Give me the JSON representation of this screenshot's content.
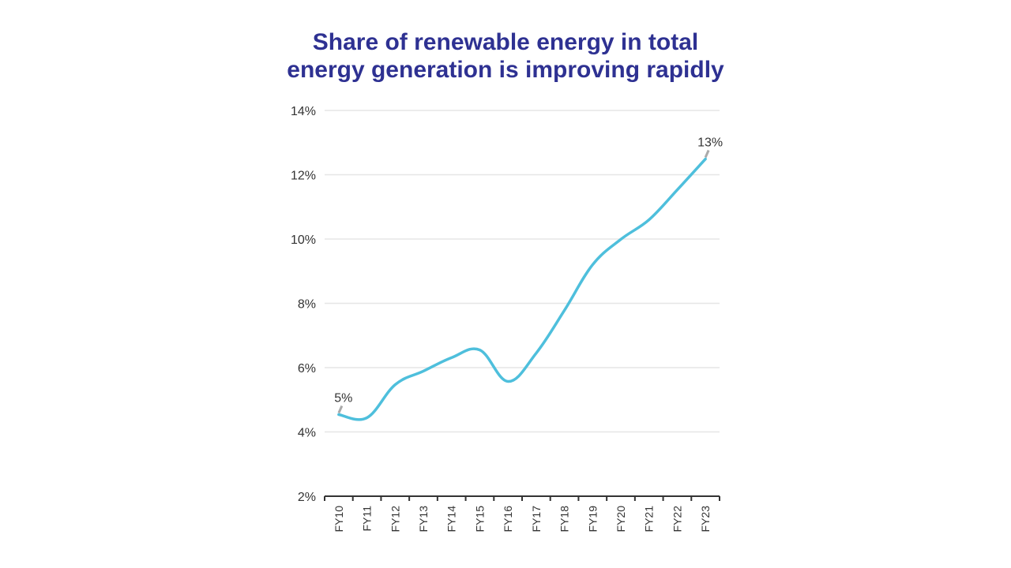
{
  "chart_data": {
    "type": "line",
    "title": [
      "Share of renewable energy in total",
      "energy generation is improving rapidly"
    ],
    "xlabel": "",
    "ylabel": "",
    "categories": [
      "FY10",
      "FY11",
      "FY12",
      "FY13",
      "FY14",
      "FY15",
      "FY16",
      "FY17",
      "FY18",
      "FY19",
      "FY20",
      "FY21",
      "FY22",
      "FY23"
    ],
    "series": [
      {
        "values": [
          4.54,
          4.44,
          5.47,
          5.89,
          6.31,
          6.55,
          5.57,
          6.45,
          7.78,
          9.2,
          9.99,
          10.6,
          11.53,
          12.49
        ],
        "color": "#4ebfdc"
      }
    ],
    "ylim": [
      2,
      14
    ],
    "yticks": [
      "2%",
      "4%",
      "6%",
      "8%",
      "10%",
      "12%",
      "14%"
    ],
    "grid": true,
    "legend": "none",
    "data_labels": [
      {
        "category": "FY10",
        "text": "5%"
      },
      {
        "category": "FY23",
        "text": "13%"
      }
    ]
  }
}
